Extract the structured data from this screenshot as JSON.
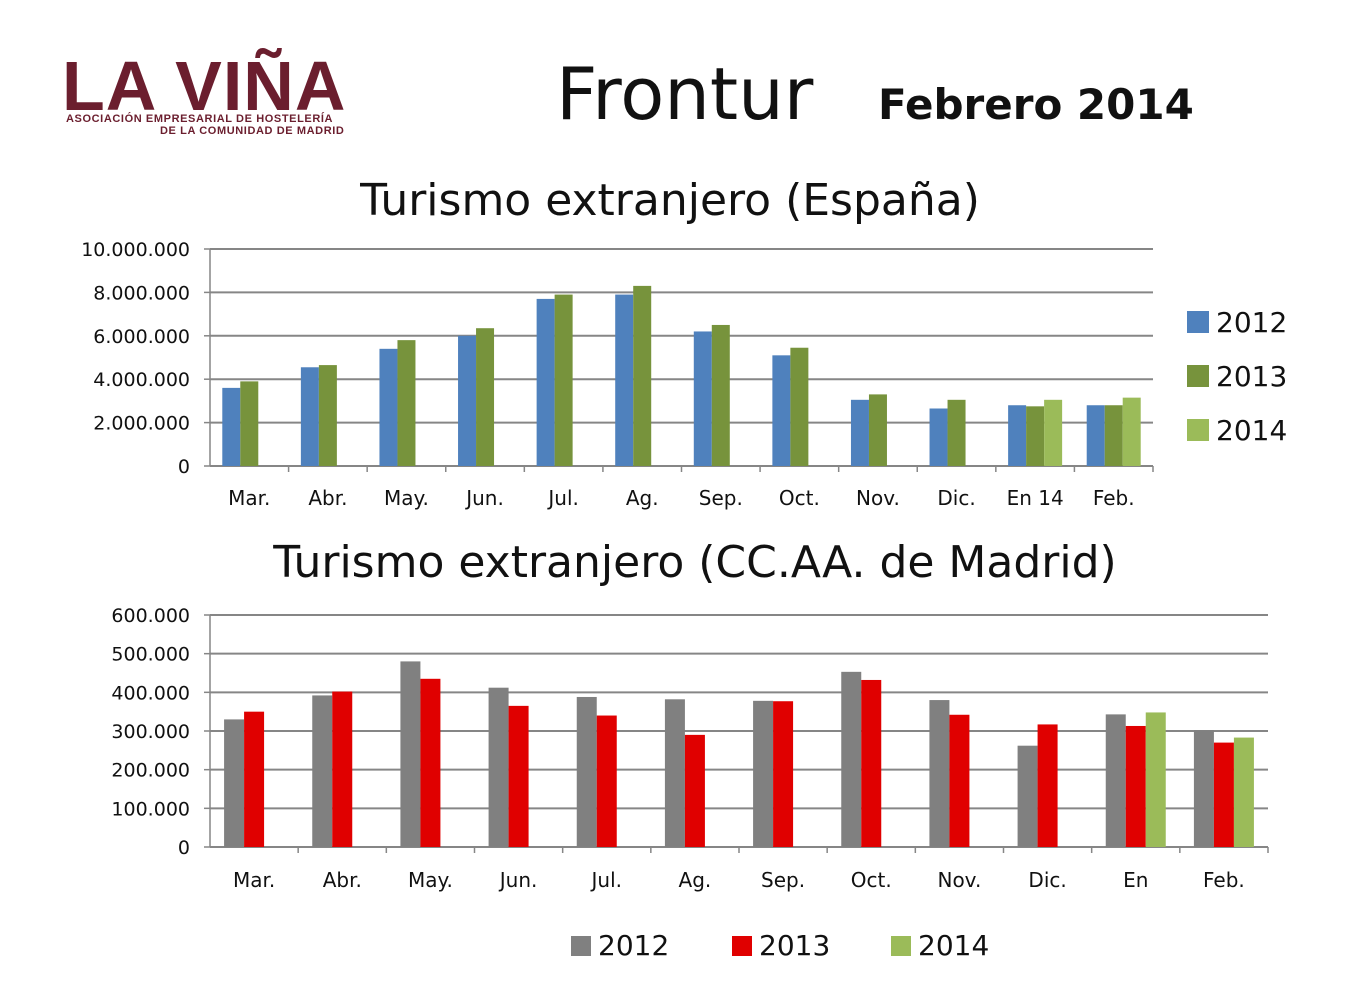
{
  "header": {
    "logo_text": "LA VIÑA",
    "logo_sub_1": "ASOCIACIÓN EMPRESARIAL DE HOSTELERÍA",
    "logo_sub_2": "DE LA COMUNIDAD DE MADRID",
    "title": "Frontur",
    "subtitle": "Febrero 2014"
  },
  "colors": {
    "c1_2012": "#4f81bd",
    "c1_2013": "#77933c",
    "c1_2014": "#9bbb59",
    "c2_2012": "#808080",
    "c2_2013": "#e00000",
    "c2_2014": "#9bbb59",
    "grid": "#868686",
    "logo": "#6b1e2e"
  },
  "chart_data": [
    {
      "type": "bar",
      "title": "Turismo extranjero (España)",
      "categories": [
        "Mar.",
        "Abr.",
        "May.",
        "Jun.",
        "Jul.",
        "Ag.",
        "Sep.",
        "Oct.",
        "Nov.",
        "Dic.",
        "En 14",
        "Feb."
      ],
      "series": [
        {
          "name": "2012",
          "values": [
            3600000,
            4550000,
            5400000,
            6000000,
            7700000,
            7900000,
            6200000,
            5100000,
            3050000,
            2650000,
            2800000,
            2800000
          ]
        },
        {
          "name": "2013",
          "values": [
            3900000,
            4650000,
            5800000,
            6350000,
            7900000,
            8300000,
            6500000,
            5450000,
            3300000,
            3050000,
            2750000,
            2800000
          ]
        },
        {
          "name": "2014",
          "values": [
            null,
            null,
            null,
            null,
            null,
            null,
            null,
            null,
            null,
            null,
            3050000,
            3150000
          ]
        }
      ],
      "ylim": [
        0,
        10000000
      ],
      "yticks": [
        "0",
        "2.000.000",
        "4.000.000",
        "6.000.000",
        "8.000.000",
        "10.000.000"
      ],
      "grid": true,
      "legend": "right"
    },
    {
      "type": "bar",
      "title": "Turismo extranjero (CC.AA. de Madrid)",
      "categories": [
        "Mar.",
        "Abr.",
        "May.",
        "Jun.",
        "Jul.",
        "Ag.",
        "Sep.",
        "Oct.",
        "Nov.",
        "Dic.",
        "En",
        "Feb."
      ],
      "series": [
        {
          "name": "2012",
          "values": [
            330000,
            392000,
            480000,
            412000,
            388000,
            382000,
            378000,
            453000,
            380000,
            262000,
            343000,
            302000
          ]
        },
        {
          "name": "2013",
          "values": [
            350000,
            402000,
            435000,
            365000,
            340000,
            290000,
            377000,
            432000,
            342000,
            317000,
            313000,
            270000
          ]
        },
        {
          "name": "2014",
          "values": [
            null,
            null,
            null,
            null,
            null,
            null,
            null,
            null,
            null,
            null,
            348000,
            283000
          ]
        }
      ],
      "ylim": [
        0,
        600000
      ],
      "yticks": [
        "0",
        "100.000",
        "200.000",
        "300.000",
        "400.000",
        "500.000",
        "600.000"
      ],
      "grid": true,
      "legend": "bottom"
    }
  ]
}
